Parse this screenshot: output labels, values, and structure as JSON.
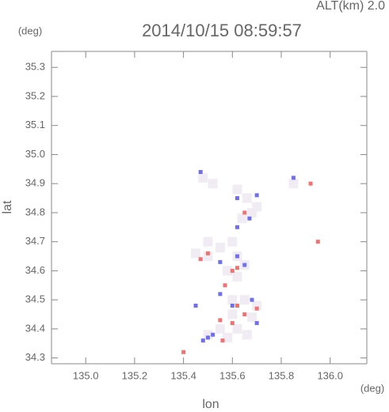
{
  "chart_data": {
    "type": "scatter",
    "title": "2014/10/15 08:59:57",
    "annotation": "ALT(km) 2.0",
    "x_label": "lon",
    "y_label": "lat",
    "x_unit": "(deg)",
    "y_unit": "(deg)",
    "xlim": [
      134.86,
      136.15
    ],
    "ylim": [
      34.28,
      35.355
    ],
    "xticks": [
      {
        "value": 135,
        "label": "135.0"
      },
      135.2,
      135.4,
      135.6,
      135.8,
      {
        "value": 136,
        "label": "136.0"
      }
    ],
    "yticks": [
      34.3,
      34.4,
      34.5,
      34.6,
      34.7,
      34.8,
      34.9,
      {
        "value": 35,
        "label": "35.0"
      },
      35.1,
      35.2,
      35.3
    ],
    "series": [
      {
        "color": "#f1ecf4",
        "size": 12,
        "x": [
          135.48,
          135.52,
          135.62,
          135.66,
          135.68,
          135.64,
          135.7,
          135.85,
          135.5,
          135.55,
          135.6,
          135.62,
          135.5,
          135.45,
          135.58,
          135.62,
          135.65,
          135.6,
          135.65,
          135.7,
          135.6,
          135.68,
          135.62,
          135.55,
          135.5,
          135.58,
          135.66
        ],
        "values": [
          34.92,
          34.9,
          34.88,
          34.85,
          34.8,
          34.78,
          34.82,
          34.9,
          34.7,
          34.68,
          34.7,
          34.65,
          34.65,
          34.66,
          34.6,
          34.58,
          34.62,
          34.5,
          34.5,
          34.48,
          34.45,
          34.44,
          34.4,
          34.4,
          34.38,
          34.37,
          34.38
        ]
      },
      {
        "color": "#7070ee",
        "size": 5,
        "x": [
          135.47,
          135.62,
          135.7,
          135.67,
          135.62,
          135.85,
          135.55,
          135.62,
          135.65,
          135.55,
          135.6,
          135.68,
          135.5,
          135.48,
          135.52,
          135.7,
          135.45
        ],
        "values": [
          34.94,
          34.85,
          34.86,
          34.78,
          34.75,
          34.92,
          34.63,
          34.65,
          34.62,
          34.52,
          34.48,
          34.5,
          34.37,
          34.36,
          34.38,
          34.42,
          34.48
        ]
      },
      {
        "color": "#f07272",
        "size": 5,
        "x": [
          135.92,
          135.95,
          135.65,
          135.47,
          135.5,
          135.6,
          135.62,
          135.57,
          135.62,
          135.65,
          135.6,
          135.7,
          135.55,
          135.4,
          135.56
        ],
        "values": [
          34.9,
          34.7,
          34.8,
          34.64,
          34.66,
          34.6,
          34.61,
          34.55,
          34.48,
          34.45,
          34.42,
          34.47,
          34.43,
          34.32,
          34.36
        ]
      }
    ]
  }
}
